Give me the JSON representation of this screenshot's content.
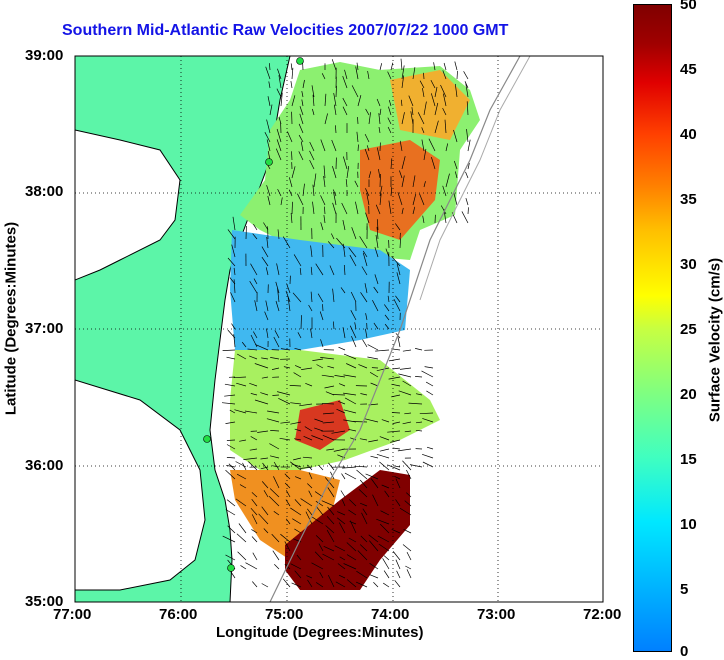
{
  "title": "Southern Mid-Atlantic Raw Velocities 2007/07/22 1000 GMT",
  "x_axis": {
    "label": "Longitude (Degrees:Minutes)",
    "ticks": [
      "77:00",
      "76:00",
      "75:00",
      "74:00",
      "73:00",
      "72:00"
    ]
  },
  "y_axis": {
    "label": "Latitude (Degrees:Minutes)",
    "ticks": [
      "39:00",
      "38:00",
      "37:00",
      "36:00",
      "35:00"
    ]
  },
  "colorbar": {
    "label": "Surface Velocity (cm/s)",
    "ticks": [
      "50",
      "45",
      "40",
      "35",
      "30",
      "25",
      "20",
      "15",
      "10",
      "5",
      "0"
    ],
    "min": 0,
    "max": 50
  },
  "colors": {
    "title": "#1414e6",
    "land": "#5cf5a8",
    "coastline": "#000000"
  },
  "station_markers": 4
}
